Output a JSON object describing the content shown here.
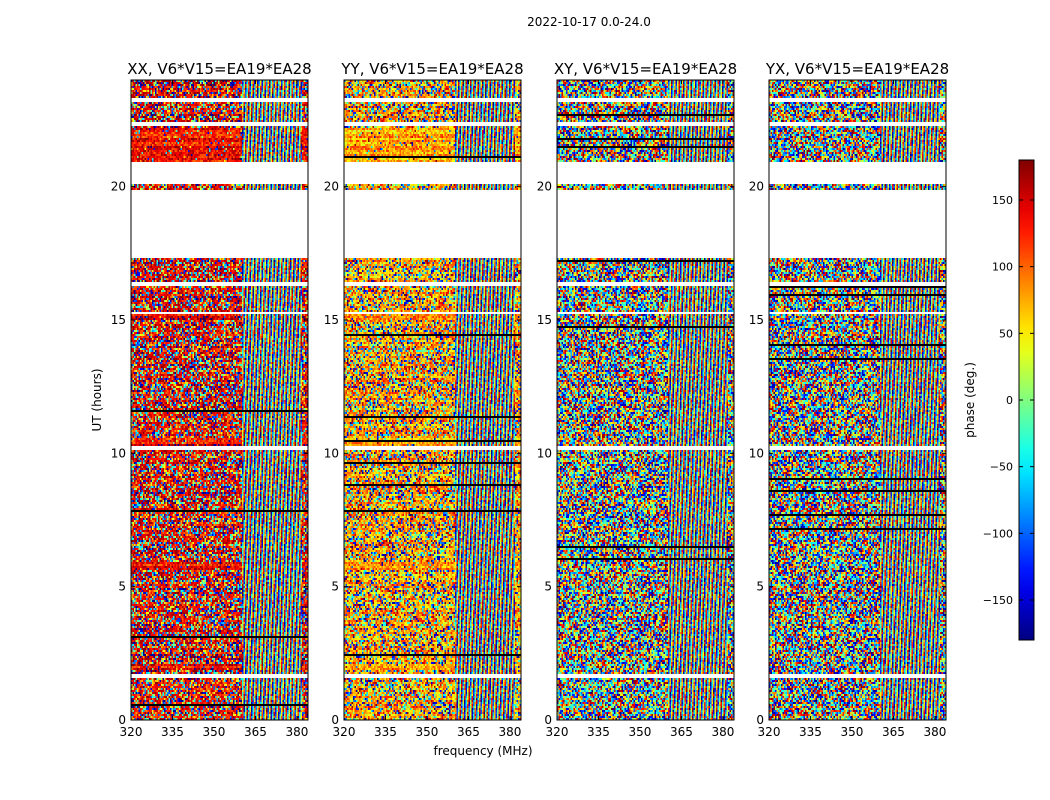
{
  "title": "2022-10-17 0.0-24.0",
  "chart_data": {
    "type": "heatmap",
    "panels": [
      {
        "title": "XX, V6*V15=EA19*EA28",
        "correlation": "XX",
        "bias_deg": 140
      },
      {
        "title": "YY, V6*V15=EA19*EA28",
        "correlation": "YY",
        "bias_deg": 75
      },
      {
        "title": "XY, V6*V15=EA19*EA28",
        "correlation": "XY",
        "bias_deg": null
      },
      {
        "title": "YX, V6*V15=EA19*EA28",
        "correlation": "YX",
        "bias_deg": null
      }
    ],
    "x": {
      "label": "frequency (MHz)",
      "range": [
        320,
        384
      ],
      "ticks": [
        320,
        335,
        350,
        365,
        380
      ],
      "tick_labels": [
        "320",
        "335",
        "350",
        "365",
        "380"
      ]
    },
    "y": {
      "label": "UT (hours)",
      "range": [
        0,
        24
      ],
      "ticks": [
        0,
        5,
        10,
        15,
        20
      ],
      "tick_labels": [
        "0",
        "5",
        "10",
        "15",
        "20"
      ]
    },
    "colorbar": {
      "label": "phase (deg.)",
      "range": [
        -180,
        180
      ],
      "ticks": [
        -150,
        -100,
        -50,
        0,
        50,
        100,
        150
      ],
      "tick_labels": [
        "−150",
        "−100",
        "−50",
        "0",
        "50",
        "100",
        "150"
      ],
      "colormap": "jet"
    },
    "data_gaps_hours": [
      [
        17.3,
        19.9
      ],
      [
        20.1,
        20.9
      ],
      [
        23.18,
        23.32
      ],
      [
        22.3,
        22.4
      ],
      [
        16.3,
        16.45
      ],
      [
        15.2,
        15.3
      ],
      [
        10.1,
        10.25
      ],
      [
        1.55,
        1.7
      ]
    ],
    "high_delay_region_mhz": [
      360,
      384
    ]
  }
}
